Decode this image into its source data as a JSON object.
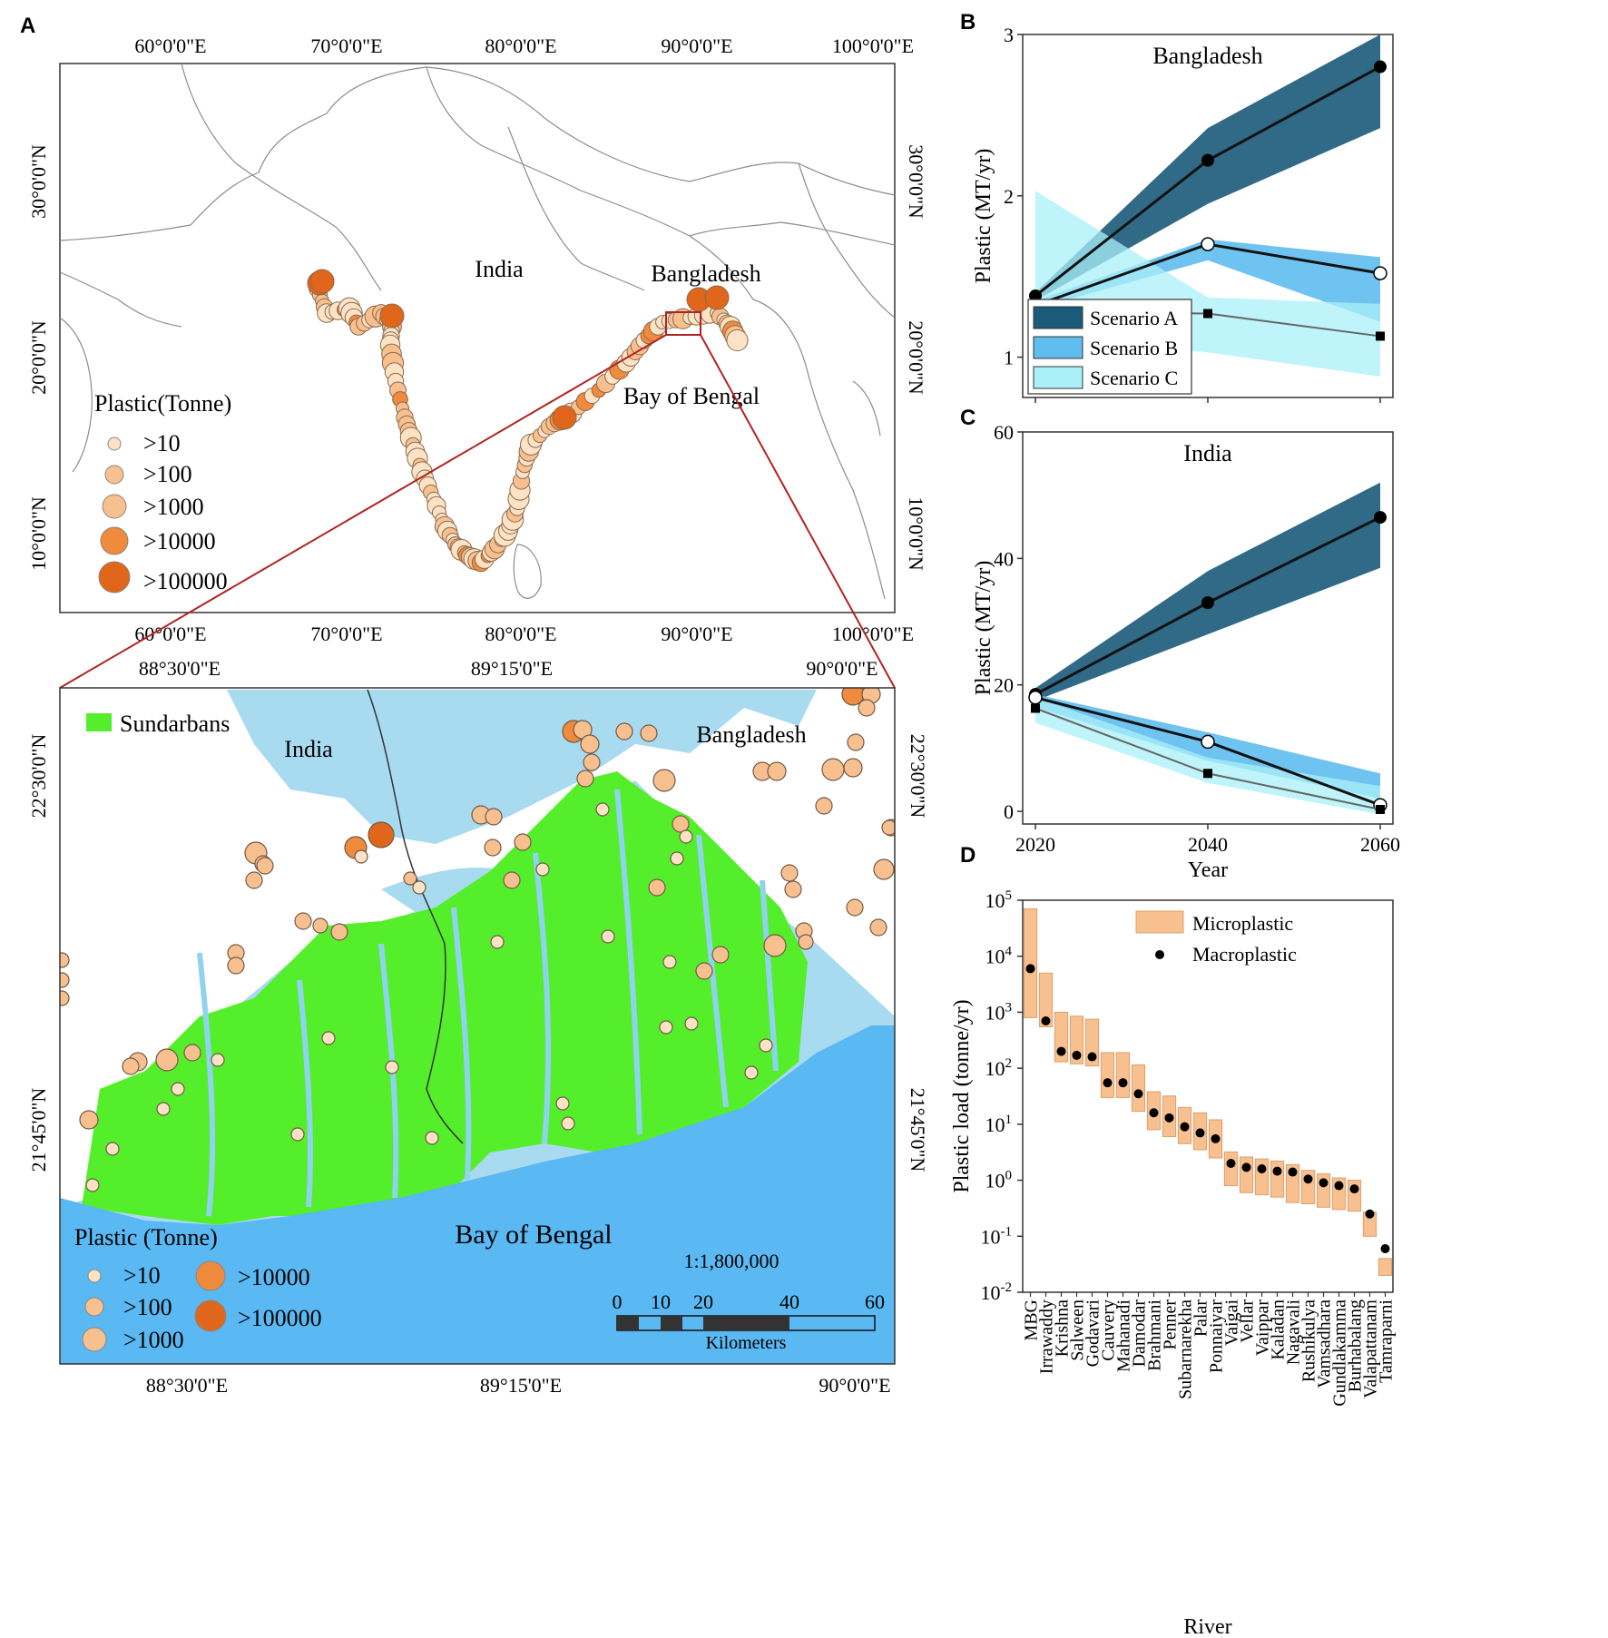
{
  "panel_letters": {
    "a": "A",
    "b": "B",
    "c": "C",
    "d": "D"
  },
  "map_top": {
    "lon_labels": [
      "60°0'0\"E",
      "70°0'0\"E",
      "80°0'0\"E",
      "90°0'0\"E",
      "100°0'0\"E"
    ],
    "lat_labels": [
      "30°0'0\"N",
      "20°0'0\"N",
      "10°0'0\"N"
    ],
    "places": {
      "india": "India",
      "bangladesh": "Bangladesh",
      "bay": "Bay of Bengal"
    },
    "legend_title": "Plastic(Tonne)",
    "legend_items": [
      ">10",
      ">100",
      ">1000",
      ">10000",
      ">100000"
    ],
    "colors": {
      "land_outline": "#8c8c8c",
      "small": "#fde3c4",
      "medium": "#f9c08f",
      "large": "#f08a3c",
      "huge": "#e0661c",
      "inset_frame": "#b22222"
    }
  },
  "map_bottom": {
    "lon_labels": [
      "88°30'0\"E",
      "89°15'0\"E",
      "90°0'0\"E"
    ],
    "lat_labels": [
      "22°30'0\"N",
      "21°45'0\"N"
    ],
    "places": {
      "india": "India",
      "bangladesh": "Bangladesh",
      "bay": "Bay of Bengal"
    },
    "sundarbans_label": "Sundarbans",
    "legend_title": "Plastic (Tonne)",
    "legend_items": [
      ">10",
      ">100",
      ">1000",
      ">10000",
      ">100000"
    ],
    "scale_text": "1:1,800,000",
    "scalebar_ticks": [
      "0",
      "10",
      "20",
      "40",
      "60"
    ],
    "scalebar_unit": "Kilometers",
    "colors": {
      "sea": "#5ab8f2",
      "shallow": "#a8daf0",
      "mangrove": "#55ee2a",
      "water": "#8fd3ee"
    }
  },
  "chart_data": [
    {
      "type": "line",
      "panel": "B",
      "title": "Bangladesh",
      "ylabel": "Plastic (MT/yr)",
      "ylim": [
        0.75,
        3
      ],
      "x": [
        2020,
        2040,
        2060
      ],
      "series": [
        {
          "name": "Scenario A",
          "values": [
            1.38,
            2.22,
            2.8
          ],
          "lower": [
            1.35,
            1.95,
            2.42
          ],
          "upper": [
            1.4,
            2.42,
            3.0
          ],
          "color": "#1b5a7a",
          "marker": "filled-circle"
        },
        {
          "name": "Scenario B",
          "values": [
            1.32,
            1.7,
            1.52
          ],
          "lower": [
            1.3,
            1.6,
            1.22
          ],
          "upper": [
            1.35,
            1.73,
            1.62
          ],
          "color": "#5fbdf0",
          "marker": "open-circle"
        },
        {
          "name": "Scenario C",
          "values": [
            1.28,
            1.27,
            1.13
          ],
          "lower": [
            1.12,
            1.03,
            0.88
          ],
          "upper": [
            2.03,
            1.37,
            1.33
          ],
          "color": "#aaf0f8",
          "marker": "square"
        }
      ],
      "yticks": [
        "1",
        "2",
        "3"
      ],
      "legend": "bottom-left"
    },
    {
      "type": "line",
      "panel": "C",
      "title": "India",
      "xlabel": "Year",
      "ylabel": "Plastic (MT/yr)",
      "ylim": [
        -2,
        60
      ],
      "x": [
        2020,
        2040,
        2060
      ],
      "series": [
        {
          "name": "Scenario A",
          "values": [
            18.5,
            33,
            46.5
          ],
          "lower": [
            17.5,
            28,
            38.5
          ],
          "upper": [
            19.5,
            38,
            52
          ],
          "color": "#1b5a7a",
          "marker": "filled-circle"
        },
        {
          "name": "Scenario B",
          "values": [
            18,
            11,
            1
          ],
          "lower": [
            16.5,
            8,
            2
          ],
          "upper": [
            18.5,
            12.5,
            6
          ],
          "color": "#5fbdf0",
          "marker": "open-circle"
        },
        {
          "name": "Scenario C",
          "values": [
            16.3,
            6,
            0.3
          ],
          "lower": [
            14,
            4.5,
            -0.5
          ],
          "upper": [
            18,
            8.5,
            4
          ],
          "color": "#aaf0f8",
          "marker": "square"
        }
      ],
      "xticks": [
        "2020",
        "2040",
        "2060"
      ],
      "yticks": [
        "0",
        "20",
        "40",
        "60"
      ]
    },
    {
      "type": "bar",
      "panel": "D",
      "xlabel": "River",
      "ylabel": "Plastic load (tonne/yr)",
      "yscale": "log",
      "ylim": [
        0.01,
        100000
      ],
      "yticks": [
        "10^-2",
        "10^-1",
        "10^0",
        "10^1",
        "10^2",
        "10^3",
        "10^4",
        "10^5"
      ],
      "categories": [
        "MBG",
        "Irrawaddy",
        "Krishna",
        "Salween",
        "Godavari",
        "Cauvery",
        "Mahanadi",
        "Damodar",
        "Brahmani",
        "Penner",
        "Subarnarekha",
        "Palar",
        "Ponnaiyar",
        "Vaigai",
        "Vellar",
        "Vaippar",
        "Kaladan",
        "Nagavali",
        "Rushikulya",
        "Vamsadhara",
        "Gundlakamma",
        "Burhabalang",
        "Valapattanam",
        "Tamraparni"
      ],
      "series": [
        {
          "name": "Microplastic",
          "type": "range",
          "lower": [
            800,
            550,
            130,
            120,
            110,
            30,
            30,
            17,
            8,
            6,
            4.5,
            3.5,
            2.5,
            0.8,
            0.6,
            0.55,
            0.5,
            0.4,
            0.38,
            0.33,
            0.3,
            0.28,
            0.1,
            0.02
          ],
          "upper": [
            70000,
            5000,
            1000,
            850,
            750,
            190,
            190,
            115,
            38,
            32,
            20,
            16,
            12,
            3.2,
            2.6,
            2.4,
            2.2,
            1.9,
            1.5,
            1.3,
            1.1,
            1.0,
            0.27,
            0.04
          ],
          "color": "#f9c08f"
        },
        {
          "name": "Macroplastic",
          "type": "point",
          "values": [
            6000,
            700,
            200,
            170,
            160,
            55,
            55,
            35,
            16,
            13,
            9,
            7,
            5.5,
            2.0,
            1.7,
            1.6,
            1.45,
            1.4,
            1.05,
            0.9,
            0.8,
            0.7,
            0.25,
            0.06
          ],
          "color": "#000000"
        }
      ],
      "legend": "top-right"
    }
  ]
}
